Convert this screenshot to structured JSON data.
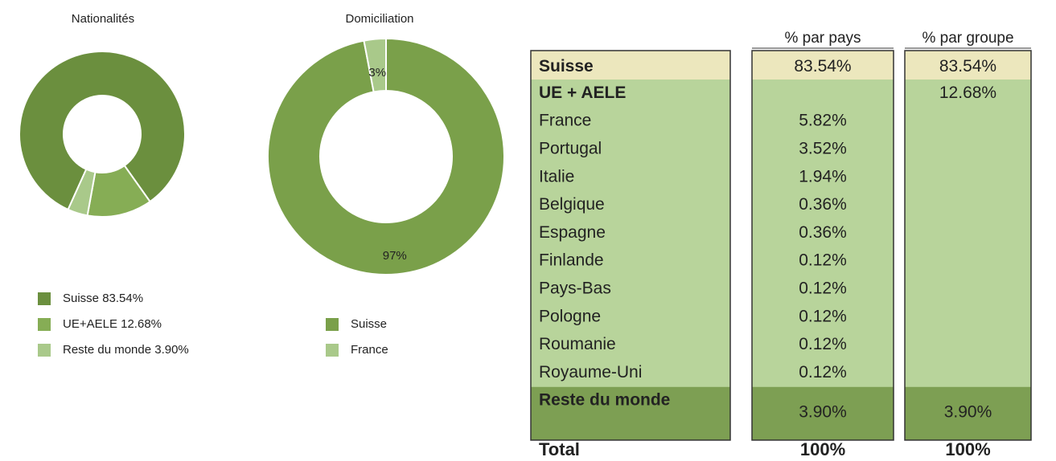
{
  "chart_data": [
    {
      "type": "donut",
      "title": "Nationalités",
      "categories": [
        "Suisse 83.54%",
        "UE+AELE 12.68%",
        "Reste du monde 3.90%"
      ],
      "values": [
        83.54,
        12.68,
        3.9
      ],
      "colors": [
        "#6b8f3e",
        "#86ad55",
        "#a9c98a"
      ]
    },
    {
      "type": "donut",
      "title": "Domiciliation",
      "categories": [
        "Suisse",
        "France"
      ],
      "values": [
        97,
        3
      ],
      "value_labels": [
        "97%",
        "3%"
      ],
      "colors": [
        "#7aa04a",
        "#a9c98a"
      ]
    }
  ],
  "table": {
    "columns": [
      "% par pays",
      "% par groupe"
    ],
    "rows": [
      [
        "Suisse",
        "83.54%",
        "83.54%"
      ],
      [
        "UE + AELE",
        null,
        "12.68%"
      ],
      [
        "France",
        "5.82%",
        null
      ],
      [
        "Portugal",
        "3.52%",
        null
      ],
      [
        "Italie",
        "1.94%",
        null
      ],
      [
        "Belgique",
        "0.36%",
        null
      ],
      [
        "Espagne",
        "0.36%",
        null
      ],
      [
        "Finlande",
        "0.12%",
        null
      ],
      [
        "Pays-Bas",
        "0.12%",
        null
      ],
      [
        "Pologne",
        "0.12%",
        null
      ],
      [
        "Roumanie",
        "0.12%",
        null
      ],
      [
        "Royaume-Uni",
        "0.12%",
        null
      ],
      [
        "Reste du monde",
        "3.90%",
        "3.90%"
      ]
    ],
    "total": [
      "Total",
      "100%",
      "100%"
    ]
  }
}
